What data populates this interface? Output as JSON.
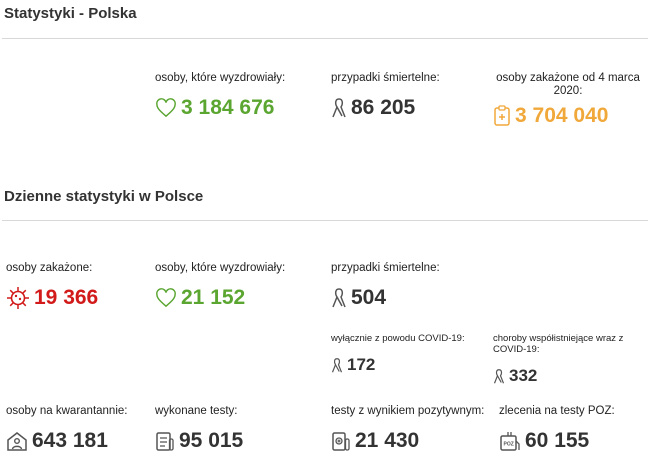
{
  "section1": {
    "title": "Statystyki - Polska",
    "recovered": {
      "label": "osoby, które wyzdrowiały:",
      "value": "3 184 676"
    },
    "deaths": {
      "label": "przypadki śmiertelne:",
      "value": "86 205"
    },
    "infected_total": {
      "label": "osoby zakażone od 4 marca 2020:",
      "value": "3 704 040"
    }
  },
  "section2": {
    "title": "Dzienne statystyki w Polsce",
    "infected": {
      "label": "osoby zakażone:",
      "value": "19 366"
    },
    "recovered": {
      "label": "osoby, które wyzdrowiały:",
      "value": "21 152"
    },
    "deaths": {
      "label": "przypadki śmiertelne:",
      "value": "504"
    },
    "deaths_covid_only": {
      "label": "wyłącznie z powodu COVID-19:",
      "value": "172"
    },
    "deaths_comorbid": {
      "label": "choroby współistniejące wraz z COVID-19:",
      "value": "332"
    },
    "quarantine": {
      "label": "osoby na kwarantannie:",
      "value": "643 181"
    },
    "tests_done": {
      "label": "wykonane testy:",
      "value": "95 015"
    },
    "tests_positive": {
      "label": "testy z wynikiem pozytywnym:",
      "value": "21 430"
    },
    "poz_orders": {
      "label": "zlecenia na testy POZ:",
      "value": "60 155"
    }
  },
  "colors": {
    "green": "#5ba531",
    "red": "#d21a1a",
    "orange": "#f1a83b",
    "dark": "#333333"
  },
  "icons": [
    "heart-icon",
    "ribbon-icon",
    "clipboard-icon",
    "virus-icon",
    "house-person-icon",
    "test-list-icon",
    "positive-test-icon",
    "poz-tube-icon"
  ]
}
